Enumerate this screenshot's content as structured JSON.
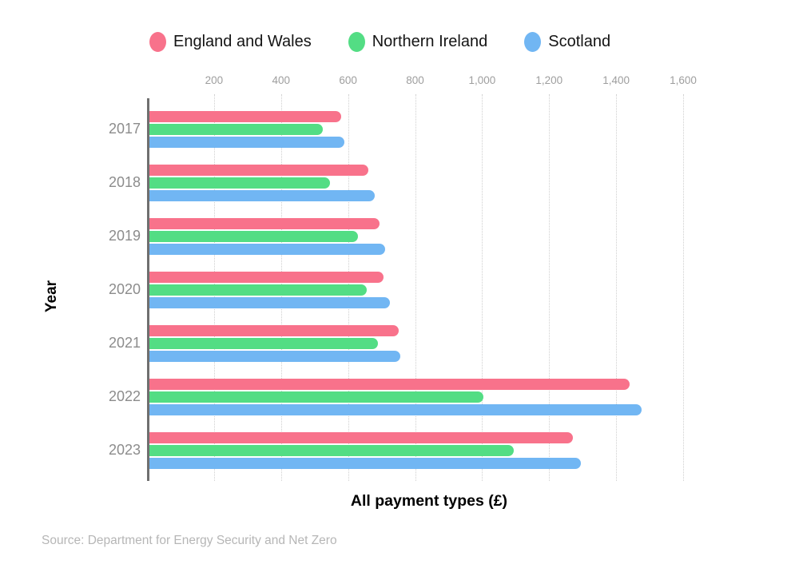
{
  "legend": {
    "items": [
      {
        "label": "England and Wales",
        "color": "#F8728B"
      },
      {
        "label": "Northern Ireland",
        "color": "#53DD84"
      },
      {
        "label": "Scotland",
        "color": "#71B6F3"
      }
    ]
  },
  "chart_data": {
    "type": "bar",
    "orientation": "horizontal",
    "title": "",
    "xlabel": "All payment types (£)",
    "ylabel": "Year",
    "categories": [
      "2017",
      "2018",
      "2019",
      "2020",
      "2021",
      "2022",
      "2023"
    ],
    "series": [
      {
        "name": "England and Wales",
        "color": "#F8728B",
        "values": [
          580,
          660,
          695,
          705,
          750,
          1440,
          1270
        ]
      },
      {
        "name": "Northern Ireland",
        "color": "#53DD84",
        "values": [
          525,
          545,
          630,
          655,
          690,
          1005,
          1095
        ]
      },
      {
        "name": "Scotland",
        "color": "#71B6F3",
        "values": [
          590,
          680,
          710,
          725,
          755,
          1475,
          1295
        ]
      }
    ],
    "xlim": [
      0,
      1600
    ],
    "x_tick_values": [
      200,
      400,
      600,
      800,
      1000,
      1200,
      1400,
      1600
    ],
    "x_tick_labels": [
      "200",
      "400",
      "600",
      "800",
      "1,000",
      "1,200",
      "1,400",
      "1,600"
    ],
    "grid": "dotted-vertical",
    "legend_position": "top"
  },
  "axes": {
    "x_title": "All payment types (£)",
    "y_title": "Year"
  },
  "source": {
    "text": "Source: Department for Energy Security and Net Zero"
  },
  "colors": {
    "axis_line": "#6f6f6f",
    "tick_label": "#9e9e9e",
    "year_label": "#8c8c8c",
    "gridline": "#cfcfcf",
    "source_text": "#b6b6b6"
  }
}
